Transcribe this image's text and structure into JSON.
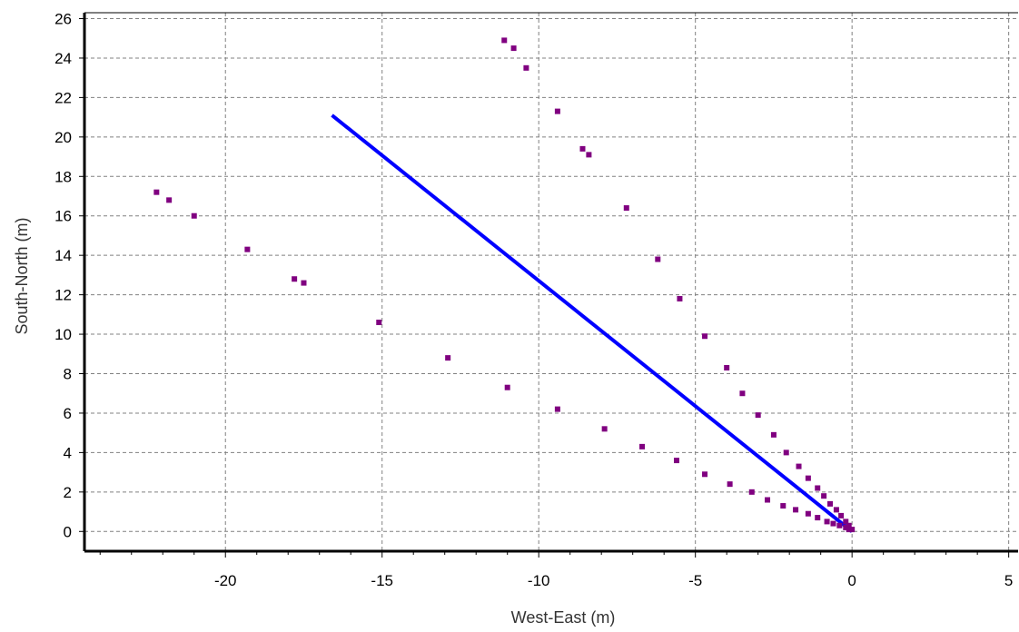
{
  "chart_data": {
    "type": "scatter",
    "title": "",
    "xlabel": "West-East (m)",
    "ylabel": "South-North (m)",
    "xlim": [
      -24.5,
      5.3
    ],
    "ylim": [
      -1.0,
      26.3
    ],
    "grid": true,
    "x_ticks": [
      -20,
      -15,
      -10,
      -5,
      0,
      5
    ],
    "y_ticks": [
      0,
      2,
      4,
      6,
      8,
      10,
      12,
      14,
      16,
      18,
      20,
      22,
      24,
      26
    ],
    "colors": {
      "line": "#0000ff",
      "points": "#800080",
      "grid": "#808080",
      "axis_label": "#333333"
    },
    "series": [
      {
        "style": "line",
        "x": [
          -16.6,
          0.0
        ],
        "y": [
          21.1,
          0.0
        ]
      },
      {
        "style": "points",
        "x": [
          -22.2,
          -21.8,
          -21.0,
          -19.3,
          -17.8,
          -17.5,
          -15.1,
          -12.9,
          -11.0,
          -9.4,
          -7.9,
          -6.7,
          -5.6,
          -4.7,
          -3.9,
          -3.2,
          -2.7,
          -2.2,
          -1.8,
          -1.4,
          -1.1,
          -0.8,
          -0.6,
          -0.4,
          -0.2,
          -0.1,
          -11.1,
          -10.8,
          -10.4,
          -9.4,
          -8.6,
          -8.4,
          -7.2,
          -6.2,
          -5.5,
          -4.7,
          -4.0,
          -3.5,
          -3.0,
          -2.5,
          -2.1,
          -1.7,
          -1.4,
          -1.1,
          -0.9,
          -0.7,
          -0.5,
          -0.35,
          -0.2,
          -0.1,
          0.0
        ],
        "y": [
          17.2,
          16.8,
          16.0,
          14.3,
          12.8,
          12.6,
          10.6,
          8.8,
          7.3,
          6.2,
          5.2,
          4.3,
          3.6,
          2.9,
          2.4,
          2.0,
          1.6,
          1.3,
          1.1,
          0.9,
          0.7,
          0.5,
          0.4,
          0.3,
          0.2,
          0.1,
          24.9,
          24.5,
          23.5,
          21.3,
          19.4,
          19.1,
          16.4,
          13.8,
          11.8,
          9.9,
          8.3,
          7.0,
          5.9,
          4.9,
          4.0,
          3.3,
          2.7,
          2.2,
          1.8,
          1.4,
          1.1,
          0.8,
          0.5,
          0.3,
          0.1
        ]
      }
    ]
  }
}
